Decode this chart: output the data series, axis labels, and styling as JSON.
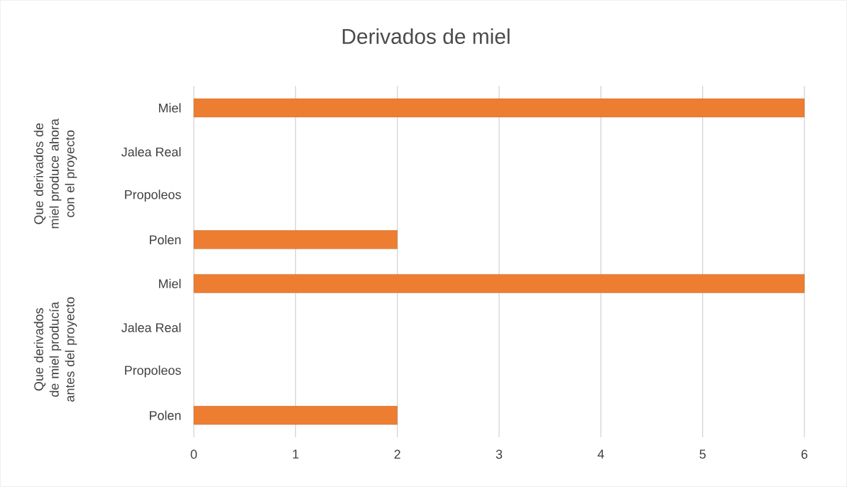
{
  "chart_data": {
    "type": "bar",
    "orientation": "horizontal",
    "title": "Derivados de miel",
    "categories": [
      "Miel",
      "Jalea Real",
      "Propoleos",
      "Polen",
      "Miel",
      "Jalea Real",
      "Propoleos",
      "Polen"
    ],
    "values": [
      6,
      null,
      null,
      2,
      6,
      null,
      null,
      2
    ],
    "color": "#ed7d31",
    "xlim": [
      0,
      6
    ],
    "xticks": [
      0,
      1,
      2,
      3,
      4,
      5,
      6
    ],
    "grid": "x",
    "annotations": [
      "Que derivados de miel produce ahora con el proyecto",
      "Que derivados de miel producía antes del proyecto"
    ]
  }
}
